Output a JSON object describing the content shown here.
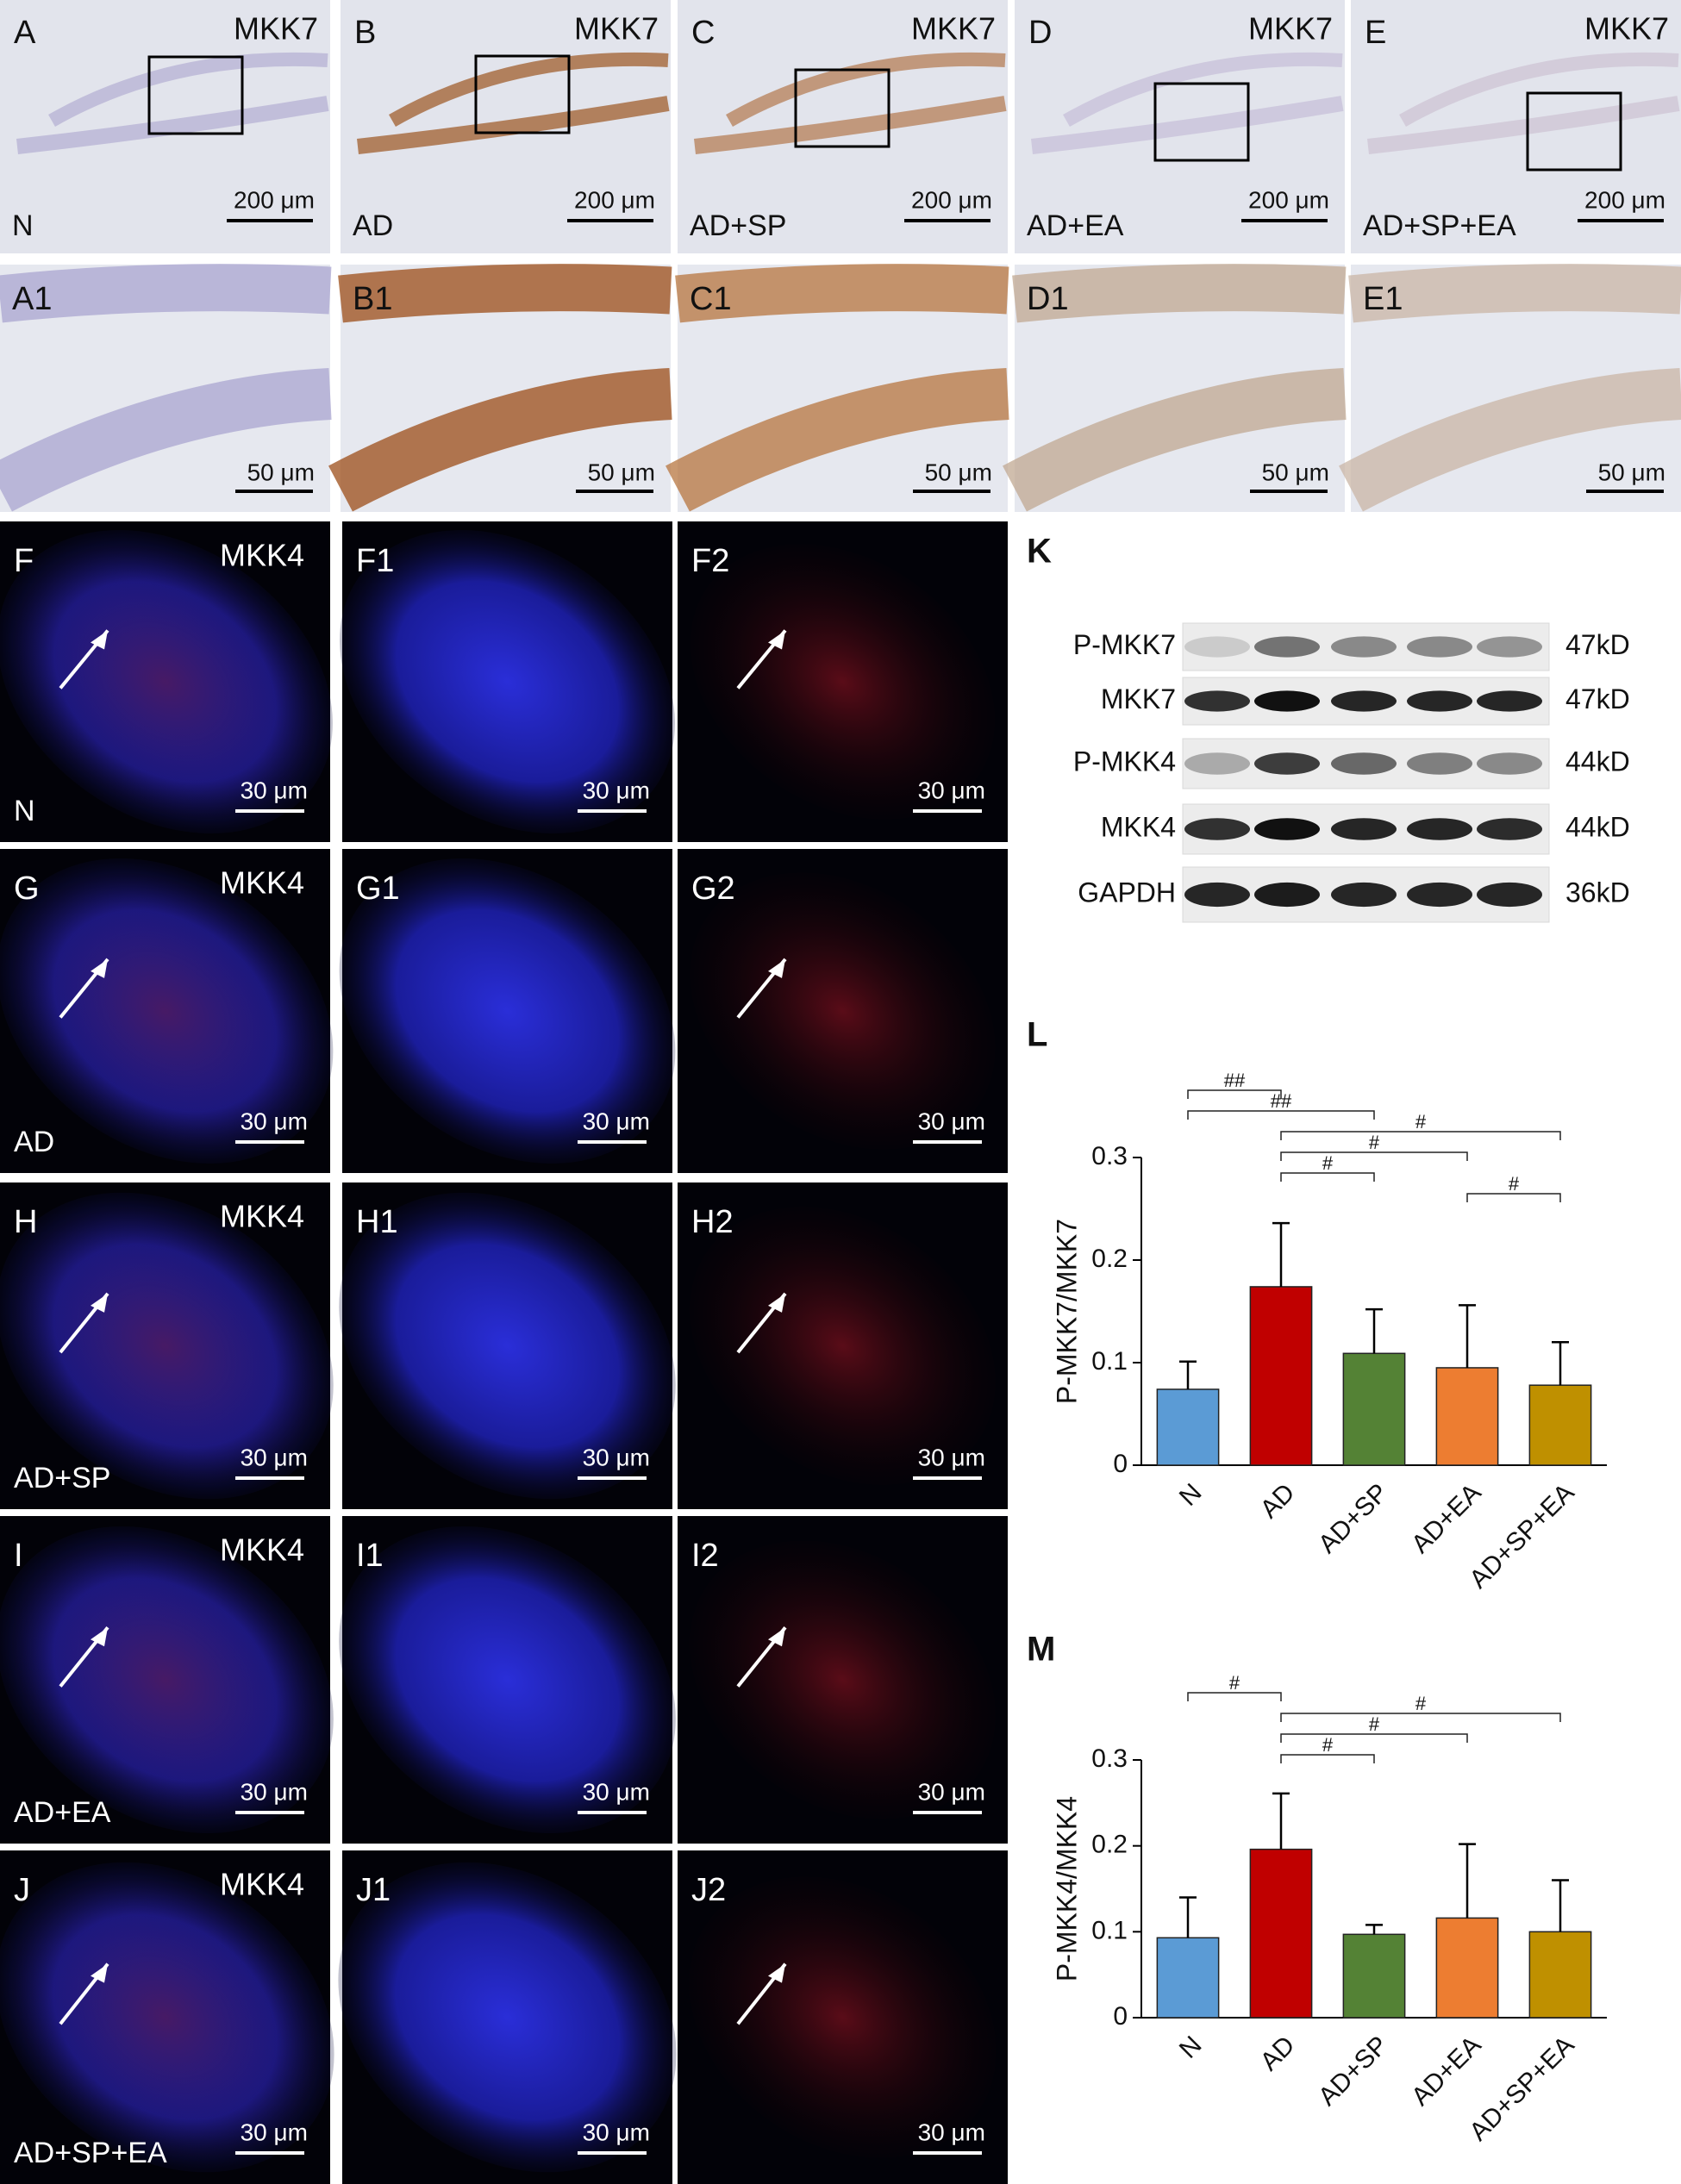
{
  "brightfield": {
    "panels": [
      {
        "label": "A",
        "marker": "MKK7",
        "group": "N",
        "scale": "200 μm"
      },
      {
        "label": "B",
        "marker": "MKK7",
        "group": "AD",
        "scale": "200 μm"
      },
      {
        "label": "C",
        "marker": "MKK7",
        "group": "AD+SP",
        "scale": "200 μm"
      },
      {
        "label": "D",
        "marker": "MKK7",
        "group": "AD+EA",
        "scale": "200 μm"
      },
      {
        "label": "E",
        "marker": "MKK7",
        "group": "AD+SP+EA",
        "scale": "200 μm"
      }
    ],
    "zoom": [
      {
        "label": "A1",
        "scale": "50 μm"
      },
      {
        "label": "B1",
        "scale": "50 μm"
      },
      {
        "label": "C1",
        "scale": "50 μm"
      },
      {
        "label": "D1",
        "scale": "50 μm"
      },
      {
        "label": "E1",
        "scale": "50 μm"
      }
    ]
  },
  "fluorescence": [
    [
      {
        "label": "F",
        "marker": "MKK4",
        "group": "N",
        "scale": "30 μm"
      },
      {
        "label": "F1",
        "scale": "30 μm"
      },
      {
        "label": "F2",
        "scale": "30 μm"
      }
    ],
    [
      {
        "label": "G",
        "marker": "MKK4",
        "group": "AD",
        "scale": "30 μm"
      },
      {
        "label": "G1",
        "scale": "30 μm"
      },
      {
        "label": "G2",
        "scale": "30 μm"
      }
    ],
    [
      {
        "label": "H",
        "marker": "MKK4",
        "group": "AD+SP",
        "scale": "30 μm"
      },
      {
        "label": "H1",
        "scale": "30 μm"
      },
      {
        "label": "H2",
        "scale": "30 μm"
      }
    ],
    [
      {
        "label": "I",
        "marker": "MKK4",
        "group": "AD+EA",
        "scale": "30 μm"
      },
      {
        "label": "I1",
        "scale": "30 μm"
      },
      {
        "label": "I2",
        "scale": "30 μm"
      }
    ],
    [
      {
        "label": "J",
        "marker": "MKK4",
        "group": "AD+SP+EA",
        "scale": "30 μm"
      },
      {
        "label": "J1",
        "scale": "30 μm"
      },
      {
        "label": "J2",
        "scale": "30 μm"
      }
    ]
  ],
  "western": {
    "label": "K",
    "bands": [
      {
        "name": "P-MKK7",
        "size": "47kD"
      },
      {
        "name": "MKK7",
        "size": "47kD"
      },
      {
        "name": "P-MKK4",
        "size": "44kD"
      },
      {
        "name": "MKK4",
        "size": "44kD"
      },
      {
        "name": "GAPDH",
        "size": "36kD"
      }
    ]
  },
  "chart_data": [
    {
      "type": "bar",
      "panel_label": "L",
      "y_label": "P-MKK7/MKK7",
      "categories": [
        "N",
        "AD",
        "AD+SP",
        "AD+EA",
        "AD+SP+EA"
      ],
      "values": [
        0.074,
        0.174,
        0.109,
        0.095,
        0.078
      ],
      "errors": [
        0.027,
        0.062,
        0.043,
        0.061,
        0.042
      ],
      "colors": [
        "#5b9bd5",
        "#c00000",
        "#548235",
        "#ed7d31",
        "#bf9000"
      ],
      "ylim": [
        0,
        0.3
      ],
      "yticks": [
        0,
        0.1,
        0.2,
        0.3
      ],
      "annotations": [
        {
          "label": "##",
          "pair": [
            0,
            1
          ]
        },
        {
          "label": "##",
          "pair": [
            0,
            2
          ]
        },
        {
          "label": "#",
          "pair": [
            1,
            4
          ]
        },
        {
          "label": "#",
          "pair": [
            1,
            3
          ]
        },
        {
          "label": "#",
          "pair": [
            1,
            2
          ]
        },
        {
          "label": "#",
          "pair": [
            3,
            4
          ]
        }
      ]
    },
    {
      "type": "bar",
      "panel_label": "M",
      "y_label": "P-MKK4/MKK4",
      "categories": [
        "N",
        "AD",
        "AD+SP",
        "AD+EA",
        "AD+SP+EA"
      ],
      "values": [
        0.093,
        0.196,
        0.097,
        0.116,
        0.1
      ],
      "errors": [
        0.047,
        0.065,
        0.011,
        0.086,
        0.06
      ],
      "colors": [
        "#5b9bd5",
        "#c00000",
        "#548235",
        "#ed7d31",
        "#bf9000"
      ],
      "ylim": [
        0,
        0.3
      ],
      "yticks": [
        0,
        0.1,
        0.2,
        0.3
      ],
      "annotations": [
        {
          "label": "#",
          "pair": [
            0,
            1
          ]
        },
        {
          "label": "#",
          "pair": [
            1,
            4
          ]
        },
        {
          "label": "#",
          "pair": [
            1,
            3
          ]
        },
        {
          "label": "#",
          "pair": [
            1,
            2
          ]
        }
      ]
    }
  ]
}
